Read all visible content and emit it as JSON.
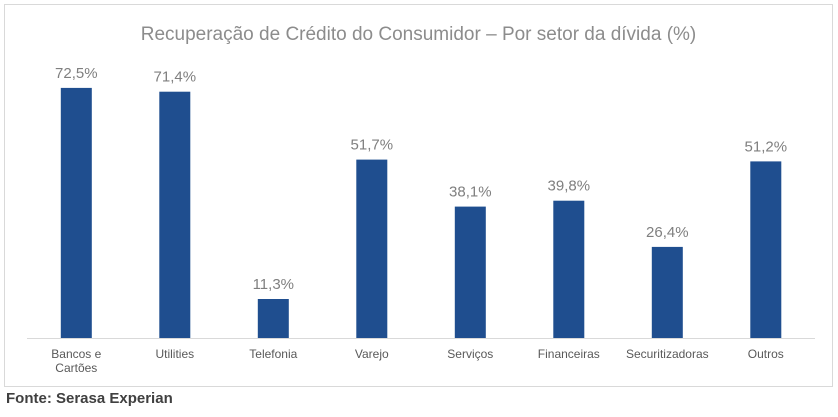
{
  "source": "Fonte: Serasa Experian",
  "colors": {
    "bar": "#1F4E8F",
    "axis": "#d9d9d9",
    "title": "#8c8c8c"
  },
  "chart_data": {
    "type": "bar",
    "title": "Recuperação de Crédito do Consumidor – Por setor da dívida (%)",
    "xlabel": "",
    "ylabel": "",
    "ylim": [
      0,
      80
    ],
    "grid": false,
    "categories": [
      [
        "Bancos e",
        "Cartões"
      ],
      [
        "Utilities"
      ],
      [
        "Telefonia"
      ],
      [
        "Varejo"
      ],
      [
        "Serviços"
      ],
      [
        "Financeiras"
      ],
      [
        "Securitizadoras"
      ],
      [
        "Outros"
      ]
    ],
    "values": [
      72.5,
      71.4,
      11.3,
      51.7,
      38.1,
      39.8,
      26.4,
      51.2
    ],
    "value_labels": [
      "72,5%",
      "71,4%",
      "11,3%",
      "51,7%",
      "38,1%",
      "39,8%",
      "26,4%",
      "51,2%"
    ]
  }
}
